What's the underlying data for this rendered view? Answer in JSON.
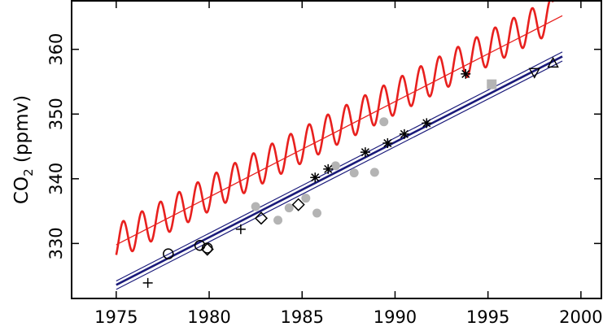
{
  "chart_data": {
    "type": "scatter",
    "title": "",
    "xlabel": "",
    "ylabel": "CO",
    "ylabel_subscript": "2",
    "ylabel_suffix": " (ppmv)",
    "xlim": [
      1972.6,
      2001.1
    ],
    "ylim": [
      321.5,
      367.5
    ],
    "xticks": [
      1975,
      1980,
      1985,
      1990,
      1995,
      2000
    ],
    "yticks": [
      330,
      340,
      350,
      360
    ],
    "xtick_labels": [
      "1975",
      "1980",
      "1985",
      "1990",
      "1995",
      "2000"
    ],
    "ytick_labels": [
      "330",
      "340",
      "350",
      "360"
    ],
    "grid": false,
    "colors": {
      "seasonal": "#e8201e",
      "trend_red": "#e8201e",
      "trend_blue": "#1a1a7a",
      "grey_points": "#b4b4b4",
      "black": "#000000"
    },
    "series": [
      {
        "kind": "seasonal_cycle",
        "x_start": 1975.0,
        "x_end": 1998.5,
        "trend_start": 330.2,
        "trend_slope": 1.495,
        "amplitude": 2.7,
        "peak_offset": 0.38
      },
      {
        "kind": "trend_line",
        "style": "red",
        "x": [
          1975.0,
          1999.0
        ],
        "y": [
          329.8,
          365.2
        ]
      },
      {
        "kind": "trend_line",
        "style": "blue_center",
        "x": [
          1975.0,
          1999.0
        ],
        "y": [
          323.6,
          358.9
        ]
      },
      {
        "kind": "trend_line",
        "style": "blue_band",
        "x": [
          1975.0,
          1999.0
        ],
        "y": [
          324.2,
          359.6
        ]
      },
      {
        "kind": "trend_line",
        "style": "blue_band",
        "x": [
          1975.0,
          1999.0
        ],
        "y": [
          322.9,
          358.2
        ]
      },
      {
        "kind": "points",
        "marker": "grey_circle",
        "x": [
          1982.5,
          1984.3,
          1983.7,
          1985.2,
          1985.8,
          1986.8,
          1987.8,
          1988.9,
          1989.4
        ],
        "y": [
          335.7,
          335.5,
          333.6,
          337.0,
          334.7,
          342.0,
          340.9,
          341.0,
          348.8
        ]
      },
      {
        "kind": "points",
        "marker": "grey_square",
        "x": [
          1995.2
        ],
        "y": [
          354.6
        ]
      },
      {
        "kind": "points",
        "marker": "plus",
        "x": [
          1976.7,
          1981.7
        ],
        "y": [
          323.9,
          332.2
        ]
      },
      {
        "kind": "points",
        "marker": "open_circle",
        "x": [
          1977.8,
          1979.5,
          1979.9
        ],
        "y": [
          328.4,
          329.7,
          329.3
        ]
      },
      {
        "kind": "points",
        "marker": "open_diamond",
        "x": [
          1979.9,
          1982.8,
          1984.8
        ],
        "y": [
          329.1,
          333.9,
          336.0
        ]
      },
      {
        "kind": "points",
        "marker": "asterisk",
        "x": [
          1985.7,
          1986.4,
          1988.4,
          1989.6,
          1990.5,
          1991.7,
          1993.8
        ],
        "y": [
          340.2,
          341.5,
          344.1,
          345.5,
          346.9,
          348.6,
          356.2
        ]
      },
      {
        "kind": "points",
        "marker": "open_triangle_down",
        "x": [
          1997.5
        ],
        "y": [
          356.4
        ]
      },
      {
        "kind": "points",
        "marker": "open_triangle_up",
        "x": [
          1998.5
        ],
        "y": [
          357.9
        ]
      }
    ]
  }
}
